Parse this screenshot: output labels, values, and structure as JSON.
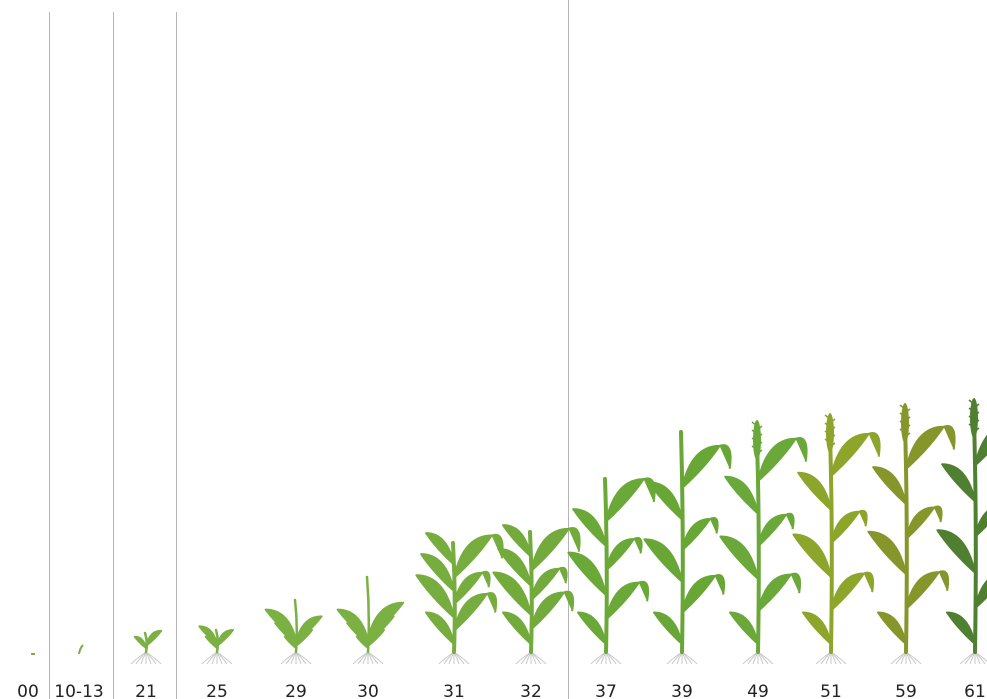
{
  "stages": [
    {
      "label": "00"
    },
    {
      "label": "10-13"
    },
    {
      "label": "21"
    },
    {
      "label": "25"
    },
    {
      "label": "29"
    },
    {
      "label": "30"
    },
    {
      "label": "31"
    },
    {
      "label": "32"
    },
    {
      "label": "37"
    },
    {
      "label": "39"
    },
    {
      "label": "49"
    },
    {
      "label": "51"
    },
    {
      "label": "59"
    },
    {
      "label": "61"
    }
  ]
}
